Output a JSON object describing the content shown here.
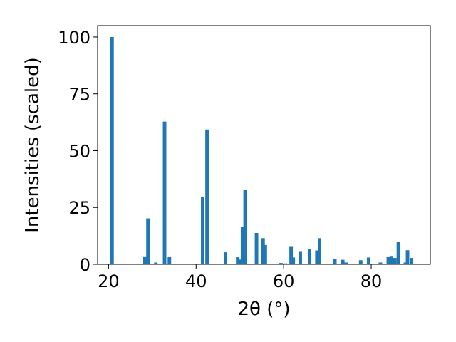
{
  "chart_data": {
    "type": "bar",
    "xlabel": "2θ (°)",
    "ylabel": "Intensities (scaled)",
    "xlim": [
      17.5,
      93.5
    ],
    "ylim": [
      0,
      105
    ],
    "xticks": [
      20,
      40,
      60,
      80
    ],
    "yticks": [
      0,
      25,
      50,
      75,
      100
    ],
    "bar_width": 0.8,
    "color": "#1f77b4",
    "grid": false,
    "series": [
      {
        "x": [
          20.8,
          28.3,
          29.0,
          30.8,
          32.8,
          33.9,
          41.5,
          42.5,
          46.7,
          49.5,
          50.2,
          50.6,
          51.2,
          53.8,
          55.3,
          55.8,
          59.4,
          60.4,
          61.7,
          62.2,
          63.8,
          65.9,
          67.6,
          68.2,
          71.7,
          73.5,
          74.3,
          77.6,
          79.4,
          82.1,
          83.9,
          84.6,
          85.4,
          86.2,
          87.8,
          88.3,
          89.2
        ],
        "y": [
          100,
          3.5,
          20.2,
          0.8,
          62.8,
          3.2,
          29.8,
          59.3,
          5.3,
          3.2,
          2.1,
          16.5,
          32.6,
          13.8,
          11.5,
          8.5,
          0.6,
          0.4,
          8.0,
          3.0,
          5.8,
          6.9,
          6.1,
          11.5,
          2.5,
          2.0,
          0.8,
          1.8,
          3.0,
          0.8,
          3.3,
          3.7,
          2.8,
          10.0,
          0.8,
          6.2,
          2.8
        ]
      }
    ]
  }
}
